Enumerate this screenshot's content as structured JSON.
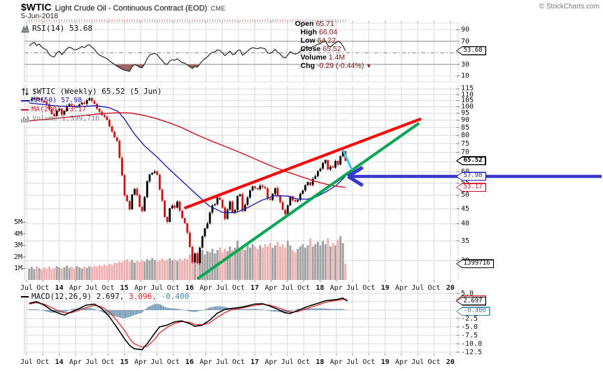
{
  "header": {
    "symbol": "$WTIC",
    "title": "Light Crude Oil - Continuous Contract (EOD)",
    "exchange": "CME",
    "copyright": "© StockCharts.com",
    "date": "5-Jun-2018",
    "quote": {
      "open_label": "Open",
      "open": "65.71",
      "high_label": "High",
      "high": "66.04",
      "low_label": "Low",
      "low": "64.22",
      "close_label": "Close",
      "close": "65.52",
      "volume_label": "Volume",
      "volume": "1.4M",
      "chg_label": "Chg",
      "chg": "-0.29 (-0.44%)",
      "direction": "▼"
    }
  },
  "rsi_panel": {
    "legend": "RSI(14) 53.68",
    "ticks": [
      90,
      70,
      30,
      10
    ]
  },
  "main_panel": {
    "legend_title": "$WTIC (Weekly) 65.52 (5 Jun)",
    "legend_ma50": "MA(50) 57.98",
    "legend_ma200": "MA(200) 53.17",
    "legend_volume": "Volume 1,399,716",
    "price_ticks": [
      115,
      110,
      105,
      100,
      95,
      90,
      85,
      80,
      75,
      70,
      60,
      55,
      50,
      45,
      40,
      35,
      30
    ],
    "volume_ticks": [
      "5M",
      "4M",
      "3M",
      "2M",
      "1M"
    ]
  },
  "macd_panel": {
    "legend_name": "MACD(12,26,9) ",
    "legend_macd": "2.697,",
    "legend_signal": " 3.096,",
    "legend_hist": " -0.400",
    "tick_labels": [
      "5.0",
      "-2.5",
      "-5.0",
      "-7.5",
      "-10.0",
      "-12.5"
    ],
    "tick_values": [
      5,
      -2.5,
      -5,
      -7.5,
      -10,
      -12.5
    ]
  },
  "x_axis": {
    "labels": [
      "Jul",
      "Oct",
      "14",
      "Apr",
      "Jul",
      "Oct",
      "15",
      "Apr",
      "Jul",
      "Oct",
      "16",
      "Apr",
      "Jul",
      "Oct",
      "17",
      "Apr",
      "Jul",
      "Oct",
      "18",
      "Apr",
      "Jul",
      "Oct",
      "19",
      "Apr",
      "Jul",
      "Oct",
      "20"
    ]
  },
  "axis_boxes": [
    {
      "panel": "rsi",
      "value": 53.68,
      "label": "53.68",
      "color": "#000000",
      "bold": false
    },
    {
      "panel": "price",
      "value": 65.52,
      "label": "65.52",
      "color": "#000000",
      "bold": true
    },
    {
      "panel": "price",
      "value": 57.98,
      "label": "57.98",
      "color": "#2020b8",
      "bold": false
    },
    {
      "panel": "price",
      "value": 53.17,
      "label": "53.17",
      "color": "#cc1122",
      "bold": false
    },
    {
      "panel": "volume",
      "value": 1.399716,
      "label": "1399716",
      "color": "#000000",
      "bold": false
    },
    {
      "panel": "macd",
      "value": 3.096,
      "label": "3.096",
      "color": "#e02020",
      "bold": false
    },
    {
      "panel": "macd",
      "value": 2.697,
      "label": "2.697",
      "color": "#000000",
      "bold": false
    },
    {
      "panel": "macd",
      "value": -0.4,
      "label": "-0.400",
      "color": "#3a87ad",
      "bold": false
    }
  ],
  "colors": {
    "up": "#000000",
    "down": "#cc1111",
    "ma50": "#2020b8",
    "ma200": "#cc1122",
    "volume_up": "#a3a3a3",
    "volume_down": "#eeb0b0",
    "trend_red": "#ff0000",
    "trend_green": "#00a651",
    "pullback_cyan": "#3cc0f0",
    "arrow_blue": "#3838cf",
    "macd_line": "#000000",
    "macd_signal": "#e02020",
    "macd_hist": "#4f81a3",
    "rsi_line": "#151515",
    "rsi_fill": "#a06565",
    "grid": "#d9d9d9",
    "value_text": "#7d1212"
  },
  "chart_data": [
    {
      "type": "line",
      "panel": "rsi",
      "title": "RSI(14)",
      "last": 53.68,
      "overbought": 70,
      "oversold": 30,
      "midline": 50,
      "ylim": [
        0,
        100
      ],
      "t0": 2013.54,
      "dt": 0.0385,
      "values": [
        62,
        66,
        68,
        63,
        65,
        60,
        57,
        55,
        47,
        44,
        43,
        50,
        53,
        47,
        52,
        57,
        60,
        58,
        55,
        56,
        58,
        61,
        59,
        63,
        64,
        60,
        56,
        50,
        46,
        44,
        42,
        40,
        36,
        33,
        30,
        27,
        24,
        22,
        20,
        19,
        18,
        26,
        30,
        28,
        25,
        24,
        31,
        40,
        46,
        48,
        49,
        47,
        41,
        37,
        31,
        30,
        36,
        38,
        37,
        40,
        36,
        33,
        32,
        29,
        26,
        23,
        27,
        25,
        31,
        36,
        40,
        43,
        48,
        51,
        52,
        55,
        54,
        50,
        45,
        49,
        53,
        47,
        48,
        54,
        55,
        46,
        49,
        53,
        57,
        59,
        58,
        57,
        59,
        58,
        57,
        50,
        49,
        52,
        56,
        51,
        48,
        43,
        41,
        46,
        52,
        49,
        48,
        49,
        53,
        55,
        58,
        60,
        58,
        61,
        62,
        65,
        66,
        69,
        71,
        63,
        60,
        64,
        67,
        70,
        68,
        62,
        53.68
      ]
    },
    {
      "type": "candlestick",
      "panel": "price",
      "title": "$WTIC Weekly",
      "ylog": true,
      "ylim": [
        26,
        117
      ],
      "t0": 2013.54,
      "dt": 0.0385,
      "close": [
        105,
        106.5,
        107.2,
        105.8,
        106.8,
        105,
        103.5,
        102,
        98,
        94.5,
        93,
        97,
        98.5,
        94,
        97,
        100.3,
        102,
        101,
        99.6,
        100.4,
        101.8,
        103.3,
        102.4,
        105.2,
        106.9,
        104.6,
        102.3,
        98.5,
        96.2,
        93.6,
        92.5,
        90.2,
        85.8,
        82.4,
        78.7,
        76.5,
        67,
        58.5,
        50,
        47.8,
        44.8,
        50.3,
        52.6,
        50.1,
        45.7,
        44.2,
        49.3,
        55.8,
        58.9,
        59.6,
        60.2,
        58.7,
        52.3,
        47.9,
        42.2,
        40.6,
        45.2,
        46.1,
        45.4,
        47.6,
        44.3,
        41.8,
        40.2,
        37.3,
        33.4,
        29.6,
        31.7,
        29.4,
        33.2,
        36.3,
        38.6,
        40.1,
        43.7,
        46.2,
        46.6,
        49.1,
        48.3,
        45.4,
        41.6,
        44.7,
        47.6,
        43.8,
        44.6,
        49.7,
        50.4,
        44.2,
        46.4,
        49.2,
        51.9,
        53.6,
        52.9,
        52.4,
        53.9,
        53.4,
        52.8,
        48.6,
        48.2,
        50.6,
        52.9,
        49.6,
        47.4,
        44.6,
        43.1,
        46.2,
        49.6,
        48.1,
        47.6,
        48.2,
        50.6,
        51.9,
        54.1,
        55.4,
        54.2,
        56.9,
        58.1,
        60.4,
        61.6,
        64.4,
        65.9,
        61.2,
        62.6,
        62.1,
        65.4,
        63.6,
        67.9,
        70.6,
        65.52
      ],
      "volume_millions": [
        1,
        1.15,
        0.95,
        1.2,
        1.05,
        0.9,
        1.1,
        1,
        1.15,
        0.95,
        1.05,
        1.2,
        1.1,
        1,
        1.1,
        1.25,
        1.05,
        1.15,
        1,
        1.2,
        1.1,
        1,
        1.15,
        1.05,
        1.2,
        1.1,
        1.25,
        1.15,
        1.3,
        1.2,
        1.35,
        1.25,
        1.4,
        1.3,
        1.5,
        1.45,
        1.6,
        1.55,
        1.7,
        1.8,
        1.6,
        1.75,
        1.5,
        1.65,
        1.55,
        1.7,
        1.6,
        1.8,
        1.7,
        1.9,
        1.75,
        1.6,
        1.7,
        1.85,
        1.65,
        1.75,
        1.9,
        1.7,
        1.8,
        1.65,
        1.85,
        1.7,
        1.9,
        1.8,
        2.2,
        2.5,
        2.1,
        2.4,
        2.3,
        2.6,
        2.2,
        2.5,
        2.4,
        2.7,
        2.3,
        2.6,
        2.8,
        2.4,
        2.7,
        2.5,
        2.9,
        2.6,
        2.8,
        3.4,
        2.7,
        2.9,
        2.6,
        3,
        2.8,
        3.1,
        2.9,
        2.7,
        3,
        2.8,
        3.1,
        2.9,
        3.2,
        2.8,
        3,
        3.3,
        2.9,
        3.1,
        2.8,
        3.4,
        3,
        2.6,
        2.4,
        2.7,
        2.9,
        3.1,
        2.8,
        3,
        3.6,
        2.9,
        3.1,
        3.3,
        3,
        3.4,
        3.1,
        3.6,
        2.9,
        3.2,
        3,
        3.5,
        3.8,
        3.2,
        1.4
      ],
      "ma50": [
        [
          2013.54,
          103
        ],
        [
          2013.8,
          101.5
        ],
        [
          2014,
          100.5
        ],
        [
          2014.3,
          100
        ],
        [
          2014.55,
          100.8
        ],
        [
          2014.75,
          99.5
        ],
        [
          2014.9,
          96.5
        ],
        [
          2015,
          91
        ],
        [
          2015.15,
          81
        ],
        [
          2015.3,
          74
        ],
        [
          2015.5,
          67.5
        ],
        [
          2015.7,
          61
        ],
        [
          2015.9,
          55.5
        ],
        [
          2016.1,
          50.5
        ],
        [
          2016.3,
          46
        ],
        [
          2016.5,
          43.8
        ],
        [
          2016.7,
          43.6
        ],
        [
          2016.9,
          45.5
        ],
        [
          2017.1,
          48
        ],
        [
          2017.3,
          49.8
        ],
        [
          2017.5,
          49.7
        ],
        [
          2017.65,
          48.6
        ],
        [
          2017.8,
          48.5
        ],
        [
          2017.95,
          49.5
        ],
        [
          2018.1,
          51.5
        ],
        [
          2018.25,
          54
        ],
        [
          2018.39,
          57.98
        ]
      ],
      "ma200": [
        [
          2013.54,
          89.5
        ],
        [
          2014,
          91.5
        ],
        [
          2014.3,
          93
        ],
        [
          2014.6,
          94.5
        ],
        [
          2014.9,
          95.5
        ],
        [
          2015.1,
          95.2
        ],
        [
          2015.3,
          93.5
        ],
        [
          2015.5,
          91
        ],
        [
          2015.7,
          88
        ],
        [
          2015.9,
          84.5
        ],
        [
          2016.1,
          80.5
        ],
        [
          2016.3,
          77
        ],
        [
          2016.5,
          74
        ],
        [
          2016.7,
          71
        ],
        [
          2016.9,
          68
        ],
        [
          2017.1,
          65
        ],
        [
          2017.3,
          62.3
        ],
        [
          2017.5,
          60
        ],
        [
          2017.7,
          58
        ],
        [
          2017.9,
          56
        ],
        [
          2018.1,
          54.5
        ],
        [
          2018.25,
          53.7
        ],
        [
          2018.39,
          53.17
        ]
      ],
      "annotations": {
        "trend_red": {
          "t1": 2015.92,
          "p1": 45.2,
          "t2": 2019.55,
          "p2": 91
        },
        "trend_green": {
          "t1": 2016.12,
          "p1": 26,
          "t2": 2019.52,
          "p2": 88
        },
        "pullback_cyan": {
          "t1": 2018.35,
          "p1": 71.5,
          "t2": 2018.49,
          "p2": 61
        },
        "arrow_blue": {
          "tip_t": 2018.43,
          "price": 57.98
        }
      }
    },
    {
      "type": "macd",
      "panel": "macd",
      "title": "MACD(12,26,9)",
      "last_macd": 2.697,
      "last_signal": 3.096,
      "last_hist": -0.4,
      "macd": [
        [
          2013.54,
          2
        ],
        [
          2013.65,
          2.5
        ],
        [
          2013.77,
          1.5
        ],
        [
          2013.88,
          0
        ],
        [
          2014,
          -1
        ],
        [
          2014.08,
          -1.5
        ],
        [
          2014.19,
          -0.5
        ],
        [
          2014.31,
          0.5
        ],
        [
          2014.42,
          1.5
        ],
        [
          2014.54,
          1.8
        ],
        [
          2014.65,
          0.5
        ],
        [
          2014.77,
          -2
        ],
        [
          2014.88,
          -5
        ],
        [
          2015,
          -8.5
        ],
        [
          2015.08,
          -10.5
        ],
        [
          2015.15,
          -11.5
        ],
        [
          2015.27,
          -11.8
        ],
        [
          2015.35,
          -10
        ],
        [
          2015.46,
          -7
        ],
        [
          2015.54,
          -5
        ],
        [
          2015.65,
          -4.5
        ],
        [
          2015.77,
          -3.5
        ],
        [
          2015.88,
          -3.2
        ],
        [
          2016,
          -4
        ],
        [
          2016.08,
          -4.8
        ],
        [
          2016.19,
          -4.5
        ],
        [
          2016.31,
          -3
        ],
        [
          2016.42,
          -1
        ],
        [
          2016.54,
          0.2
        ],
        [
          2016.65,
          0.5
        ],
        [
          2016.77,
          0.8
        ],
        [
          2016.88,
          1.2
        ],
        [
          2017,
          1.8
        ],
        [
          2017.12,
          1.9
        ],
        [
          2017.23,
          1.2
        ],
        [
          2017.35,
          0.3
        ],
        [
          2017.46,
          -0.8
        ],
        [
          2017.54,
          -1
        ],
        [
          2017.65,
          -0.2
        ],
        [
          2017.77,
          0.8
        ],
        [
          2017.88,
          1.5
        ],
        [
          2018,
          2.2
        ],
        [
          2018.08,
          2.8
        ],
        [
          2018.19,
          3
        ],
        [
          2018.27,
          3.2
        ],
        [
          2018.35,
          3.6
        ],
        [
          2018.42,
          2.697
        ]
      ],
      "signal": [
        [
          2013.54,
          1.8
        ],
        [
          2013.65,
          2.2
        ],
        [
          2013.77,
          1.8
        ],
        [
          2013.88,
          0.8
        ],
        [
          2014,
          -0.3
        ],
        [
          2014.08,
          -0.8
        ],
        [
          2014.19,
          -0.8
        ],
        [
          2014.31,
          0
        ],
        [
          2014.42,
          0.8
        ],
        [
          2014.54,
          1.4
        ],
        [
          2014.65,
          1
        ],
        [
          2014.77,
          -0.5
        ],
        [
          2014.88,
          -3
        ],
        [
          2015,
          -6
        ],
        [
          2015.08,
          -8.5
        ],
        [
          2015.15,
          -10
        ],
        [
          2015.27,
          -11
        ],
        [
          2015.35,
          -10.8
        ],
        [
          2015.46,
          -8.8
        ],
        [
          2015.54,
          -6.8
        ],
        [
          2015.65,
          -5.2
        ],
        [
          2015.77,
          -4
        ],
        [
          2015.88,
          -3.4
        ],
        [
          2016,
          -3.6
        ],
        [
          2016.08,
          -4.2
        ],
        [
          2016.19,
          -4.4
        ],
        [
          2016.31,
          -3.8
        ],
        [
          2016.42,
          -2.2
        ],
        [
          2016.54,
          -0.8
        ],
        [
          2016.65,
          0.1
        ],
        [
          2016.77,
          0.5
        ],
        [
          2016.88,
          0.9
        ],
        [
          2017,
          1.4
        ],
        [
          2017.12,
          1.7
        ],
        [
          2017.23,
          1.5
        ],
        [
          2017.35,
          0.8
        ],
        [
          2017.46,
          0
        ],
        [
          2017.54,
          -0.6
        ],
        [
          2017.65,
          -0.5
        ],
        [
          2017.77,
          0.2
        ],
        [
          2017.88,
          1
        ],
        [
          2018,
          1.7
        ],
        [
          2018.08,
          2.3
        ],
        [
          2018.19,
          2.7
        ],
        [
          2018.27,
          2.9
        ],
        [
          2018.35,
          3.2
        ],
        [
          2018.42,
          3.096
        ]
      ]
    }
  ]
}
